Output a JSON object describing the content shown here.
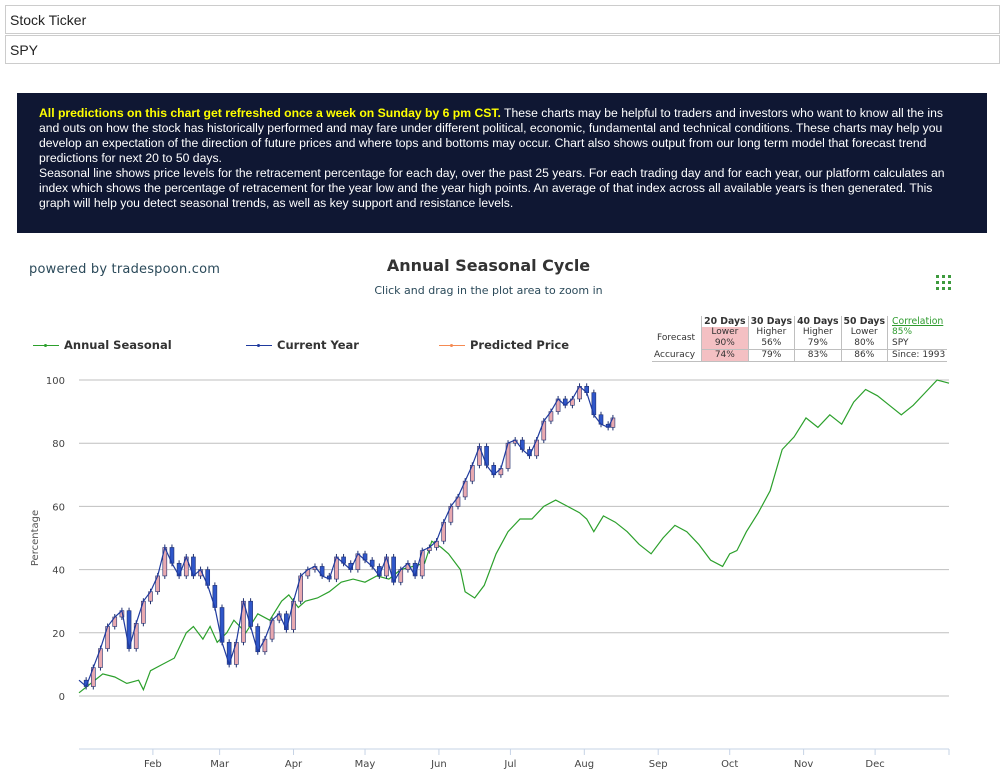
{
  "form": {
    "ticker_label": "Stock Ticker",
    "ticker_value": "SPY"
  },
  "info": {
    "highlight": "All predictions on this chart get refreshed once a week on Sunday by 6 pm CST.",
    "para1": " These charts may be helpful to traders and investors who want to know all the ins and outs on how the stock has historically performed and may fare under different political, economic, fundamental and technical conditions. These charts may help you develop an expectation of the direction of future prices and where tops and bottoms may occur. Chart also shows output from our long term model that forecast trend predictions for next 20 to 50 days.",
    "para2": "Seasonal line shows price levels for the retracement percentage for each day, over the past 25 years. For each trading day and for each year, our platform calculates an index which shows the percentage of retracement for the year low and the year high points. An average of that index across all available years is then generated. This graph will help you detect seasonal trends, as well as key support and resistance levels."
  },
  "powered_by": "powered by tradespoon.com",
  "forecast_table": {
    "headers": [
      "20 Days",
      "30 Days",
      "40 Days",
      "50 Days"
    ],
    "forecast_label": "Forecast",
    "accuracy_label": "Accuracy",
    "directions": [
      "Lower",
      "Higher",
      "Higher",
      "Lower"
    ],
    "forecast_pct": [
      "90%",
      "56%",
      "79%",
      "80%"
    ],
    "accuracy_pct": [
      "74%",
      "79%",
      "83%",
      "86%"
    ],
    "correlation_label": "Correlation",
    "correlation_value": "85%",
    "ticker": "SPY",
    "since": "Since: 1993"
  },
  "colors": {
    "seasonal": "#2ca02c",
    "current": "#1f3a9e",
    "predicted": "#f58a52",
    "candle_up": "#e9a9b0",
    "candle_down": "#2f56c9",
    "grid": "#bfbfbf",
    "banner_bg": "#0f1733",
    "banner_highlight": "#ffff00"
  },
  "chart_data": {
    "type": "line",
    "title": "Annual Seasonal Cycle",
    "subtitle": "Click and drag in the plot area to zoom in",
    "ylabel": "Percentage",
    "xlabel": "",
    "ylim": [
      0,
      100
    ],
    "yticks": [
      0,
      20,
      40,
      60,
      80,
      100
    ],
    "xlim": [
      0,
      365
    ],
    "x_ticks": [
      {
        "label": "Feb",
        "day": 31
      },
      {
        "label": "Mar",
        "day": 59
      },
      {
        "label": "Apr",
        "day": 90
      },
      {
        "label": "May",
        "day": 120
      },
      {
        "label": "Jun",
        "day": 151
      },
      {
        "label": "Jul",
        "day": 181
      },
      {
        "label": "Aug",
        "day": 212
      },
      {
        "label": "Sep",
        "day": 243
      },
      {
        "label": "Oct",
        "day": 273
      },
      {
        "label": "Nov",
        "day": 304
      },
      {
        "label": "Dec",
        "day": 334
      }
    ],
    "legend": [
      "Annual Seasonal",
      "Current Year",
      "Predicted Price"
    ],
    "grid": true,
    "series": [
      {
        "name": "Annual Seasonal",
        "x": [
          0,
          5,
          10,
          15,
          20,
          25,
          27,
          30,
          35,
          40,
          45,
          48,
          52,
          55,
          58,
          62,
          65,
          70,
          75,
          80,
          85,
          88,
          92,
          95,
          100,
          105,
          110,
          115,
          120,
          125,
          130,
          135,
          140,
          145,
          148,
          152,
          155,
          160,
          162,
          166,
          170,
          175,
          180,
          185,
          190,
          195,
          200,
          205,
          210,
          213,
          216,
          220,
          225,
          230,
          235,
          240,
          245,
          250,
          255,
          260,
          265,
          270,
          273,
          276,
          280,
          285,
          290,
          295,
          300,
          305,
          310,
          315,
          320,
          325,
          330,
          335,
          340,
          345,
          350,
          355,
          360,
          365
        ],
        "y": [
          1,
          4,
          7,
          6,
          4,
          5,
          2,
          8,
          10,
          12,
          20,
          22,
          18,
          22,
          17,
          20,
          24,
          20,
          26,
          24,
          30,
          32,
          28,
          30,
          31,
          33,
          36,
          37,
          36,
          38,
          37,
          40,
          41,
          42,
          49,
          47,
          45,
          40,
          33,
          31,
          35,
          45,
          52,
          56,
          56,
          60,
          62,
          60,
          58,
          56,
          52,
          57,
          55,
          52,
          48,
          45,
          50,
          54,
          52,
          48,
          43,
          41,
          45,
          46,
          52,
          58,
          65,
          78,
          82,
          88,
          85,
          89,
          86,
          93,
          97,
          95,
          92,
          89,
          92,
          96,
          100,
          99
        ]
      },
      {
        "name": "Current Year",
        "x": [
          0,
          3,
          6,
          9,
          12,
          15,
          18,
          21,
          24,
          27,
          30,
          33,
          36,
          39,
          42,
          45,
          48,
          51,
          54,
          57,
          60,
          63,
          66,
          69,
          72,
          75,
          78,
          81,
          84,
          87,
          90,
          93,
          96,
          99,
          102,
          105,
          108,
          111,
          114,
          117,
          120,
          123,
          126,
          129,
          132,
          135,
          138,
          141,
          144,
          147,
          150,
          153,
          156,
          159,
          162,
          165,
          168,
          171,
          174,
          177,
          180,
          183,
          186,
          189,
          192,
          195,
          198,
          201,
          204,
          207,
          210,
          213,
          216,
          219,
          222,
          224
        ],
        "y": [
          5,
          3,
          9,
          15,
          22,
          25,
          27,
          15,
          23,
          30,
          33,
          38,
          47,
          42,
          38,
          44,
          38,
          40,
          35,
          28,
          17,
          10,
          17,
          30,
          22,
          14,
          18,
          24,
          26,
          21,
          30,
          38,
          40,
          41,
          38,
          37,
          44,
          42,
          40,
          45,
          43,
          41,
          38,
          44,
          36,
          40,
          42,
          38,
          46,
          47,
          49,
          55,
          60,
          63,
          68,
          73,
          79,
          73,
          70,
          72,
          80,
          81,
          78,
          76,
          81,
          87,
          90,
          94,
          92,
          94,
          98,
          96,
          89,
          86,
          85,
          88
        ]
      },
      {
        "name": "Predicted Price",
        "x": [],
        "y": []
      }
    ]
  }
}
